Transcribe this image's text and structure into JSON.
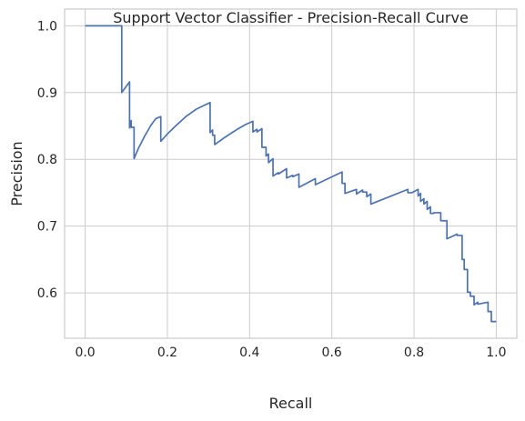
{
  "chart_data": {
    "type": "line",
    "title": "Support Vector Classifier - Precision-Recall Curve",
    "xlabel": "Recall",
    "ylabel": "Precision",
    "xlim": [
      -0.05,
      1.05
    ],
    "ylim": [
      0.532,
      1.025
    ],
    "xticks": [
      0.0,
      0.2,
      0.4,
      0.6,
      0.8,
      1.0
    ],
    "xtick_labels": [
      "0.0",
      "0.2",
      "0.4",
      "0.6",
      "0.8",
      "1.0"
    ],
    "yticks": [
      0.6,
      0.7,
      0.8,
      0.9,
      1.0
    ],
    "ytick_labels": [
      "0.6",
      "0.7",
      "0.8",
      "0.9",
      "1.0"
    ],
    "grid": true,
    "line_color": "#4c72b0",
    "series": [
      {
        "x": [
          0.0,
          0.089,
          0.089,
          0.108,
          0.108,
          0.112,
          0.112,
          0.119,
          0.119,
          0.13,
          0.145,
          0.16,
          0.172,
          0.184,
          0.184,
          0.2,
          0.22,
          0.245,
          0.27,
          0.29,
          0.304,
          0.304,
          0.31,
          0.31,
          0.315,
          0.315,
          0.34,
          0.37,
          0.39,
          0.408,
          0.408,
          0.418,
          0.418,
          0.43,
          0.43,
          0.44,
          0.44,
          0.446,
          0.446,
          0.457,
          0.457,
          0.47,
          0.47,
          0.49,
          0.49,
          0.505,
          0.505,
          0.52,
          0.52,
          0.56,
          0.56,
          0.625,
          0.625,
          0.632,
          0.632,
          0.66,
          0.66,
          0.675,
          0.675,
          0.685,
          0.685,
          0.695,
          0.695,
          0.785,
          0.785,
          0.795,
          0.795,
          0.81,
          0.81,
          0.816,
          0.816,
          0.824,
          0.824,
          0.832,
          0.832,
          0.84,
          0.84,
          0.848,
          0.848,
          0.865,
          0.865,
          0.88,
          0.88,
          0.905,
          0.905,
          0.917,
          0.917,
          0.922,
          0.922,
          0.93,
          0.93,
          0.937,
          0.937,
          0.946,
          0.946,
          0.955,
          0.955,
          0.98,
          0.98,
          0.988,
          0.988,
          1.0
        ],
        "y": [
          1.0,
          1.0,
          0.9,
          0.916,
          0.847,
          0.858,
          0.848,
          0.848,
          0.801,
          0.817,
          0.835,
          0.851,
          0.861,
          0.864,
          0.827,
          0.838,
          0.85,
          0.864,
          0.875,
          0.881,
          0.885,
          0.84,
          0.844,
          0.836,
          0.836,
          0.822,
          0.833,
          0.845,
          0.852,
          0.857,
          0.841,
          0.845,
          0.841,
          0.846,
          0.818,
          0.818,
          0.805,
          0.808,
          0.795,
          0.801,
          0.775,
          0.78,
          0.778,
          0.786,
          0.772,
          0.776,
          0.774,
          0.778,
          0.758,
          0.771,
          0.762,
          0.781,
          0.764,
          0.764,
          0.749,
          0.755,
          0.748,
          0.754,
          0.751,
          0.751,
          0.744,
          0.748,
          0.733,
          0.755,
          0.75,
          0.75,
          0.75,
          0.755,
          0.745,
          0.749,
          0.737,
          0.741,
          0.733,
          0.737,
          0.725,
          0.729,
          0.719,
          0.719,
          0.72,
          0.72,
          0.708,
          0.708,
          0.681,
          0.688,
          0.686,
          0.686,
          0.65,
          0.65,
          0.635,
          0.635,
          0.601,
          0.601,
          0.595,
          0.595,
          0.582,
          0.586,
          0.583,
          0.586,
          0.572,
          0.572,
          0.557,
          0.557
        ]
      }
    ]
  }
}
